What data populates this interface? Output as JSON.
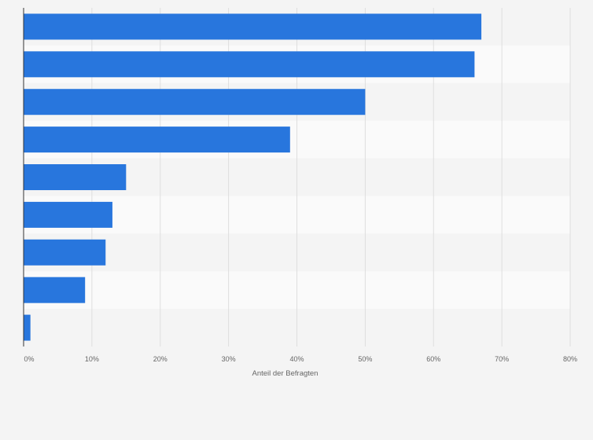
{
  "chart_data": {
    "type": "bar",
    "orientation": "horizontal",
    "categories": [
      "",
      "",
      "",
      "",
      "",
      "",
      "",
      "",
      ""
    ],
    "values": [
      67,
      66,
      50,
      39,
      15,
      13,
      12,
      9,
      1
    ],
    "xlabel": "Anteil der Befragten",
    "ylabel": "",
    "xlim": [
      0,
      80
    ],
    "xticks": [
      "0%",
      "10%",
      "20%",
      "30%",
      "40%",
      "50%",
      "60%",
      "70%",
      "80%"
    ],
    "grid": true,
    "legend": "none",
    "bar_color": "#2876dd",
    "band_colors": [
      "#f4f4f4",
      "#fafafa"
    ]
  }
}
